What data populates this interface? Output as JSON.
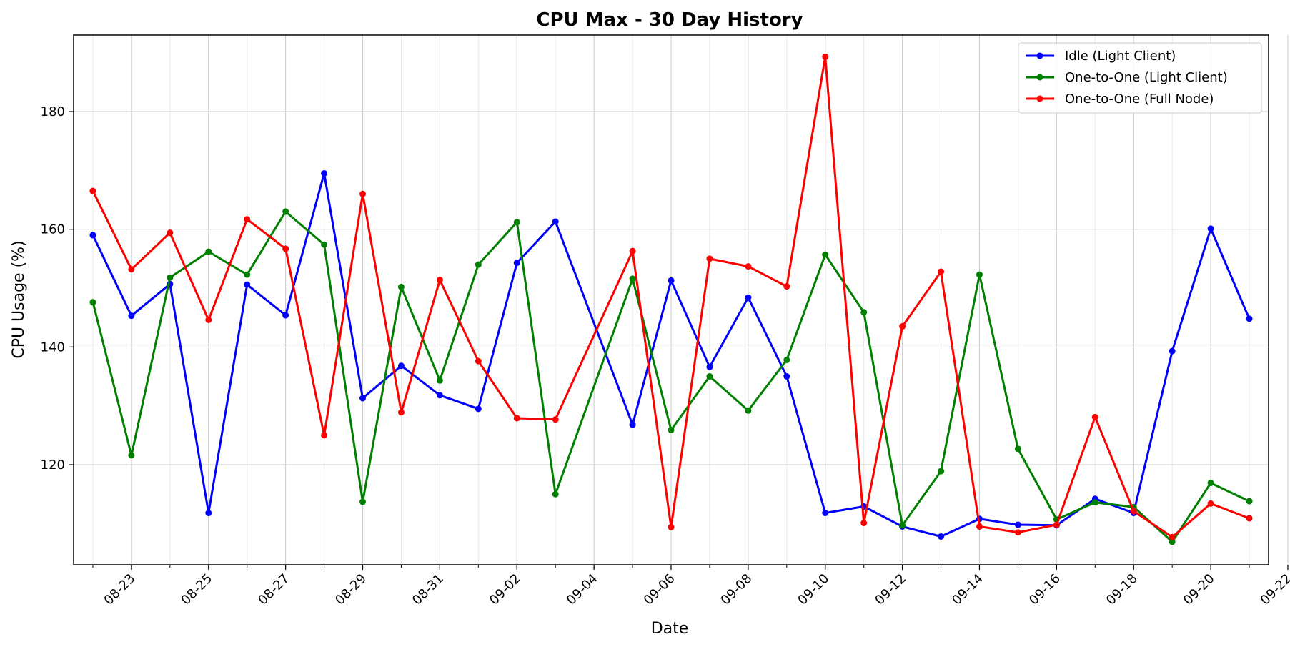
{
  "chart_data": {
    "type": "line",
    "title": "CPU Max - 30 Day History",
    "xlabel": "Date",
    "ylabel": "CPU Usage (%)",
    "x": [
      "08-22",
      "08-23",
      "08-24",
      "08-25",
      "08-26",
      "08-27",
      "08-28",
      "08-29",
      "08-30",
      "08-31",
      "09-01",
      "09-02",
      "09-03",
      "09-05",
      "09-06",
      "09-07",
      "09-08",
      "09-09",
      "09-10",
      "09-11",
      "09-12",
      "09-13",
      "09-14",
      "09-15",
      "09-16",
      "09-17",
      "09-18",
      "09-19",
      "09-20",
      "09-21"
    ],
    "x_ticks": [
      "08-23",
      "08-25",
      "08-27",
      "08-29",
      "08-31",
      "09-02",
      "09-04",
      "09-06",
      "09-08",
      "09-10",
      "09-12",
      "09-14",
      "09-16",
      "09-18",
      "09-20",
      "09-22"
    ],
    "y_ticks": [
      120,
      140,
      160,
      180
    ],
    "ylim": [
      103,
      193
    ],
    "grid": true,
    "legend_position": "top-right",
    "series": [
      {
        "name": "Idle (Light Client)",
        "color": "#0000ff",
        "values": [
          159.0,
          145.3,
          150.7,
          111.8,
          150.6,
          145.4,
          169.5,
          131.3,
          136.8,
          131.8,
          129.5,
          154.3,
          161.3,
          126.8,
          151.3,
          136.6,
          148.4,
          135.0,
          111.8,
          112.9,
          109.5,
          107.8,
          110.8,
          109.8,
          109.7,
          114.2,
          111.8,
          139.3,
          160.1,
          144.8
        ]
      },
      {
        "name": "One-to-One (Light Client)",
        "color": "#008000",
        "values": [
          147.6,
          121.6,
          151.8,
          156.2,
          152.3,
          163.0,
          157.4,
          113.7,
          150.2,
          134.3,
          154.0,
          161.2,
          115.0,
          151.6,
          125.9,
          135.0,
          129.2,
          137.8,
          155.7,
          145.9,
          109.7,
          118.9,
          152.3,
          122.7,
          110.7,
          113.6,
          112.8,
          106.9,
          116.9,
          113.8
        ]
      },
      {
        "name": "One-to-One (Full Node)",
        "color": "#ff0000",
        "values": [
          166.5,
          153.2,
          159.4,
          144.6,
          161.7,
          156.7,
          125.0,
          166.0,
          128.9,
          151.4,
          137.6,
          127.9,
          127.7,
          156.3,
          109.4,
          155.0,
          153.7,
          150.3,
          189.3,
          110.1,
          143.5,
          152.8,
          109.5,
          108.5,
          109.8,
          128.1,
          112.1,
          107.7,
          113.4,
          110.9
        ]
      }
    ]
  }
}
